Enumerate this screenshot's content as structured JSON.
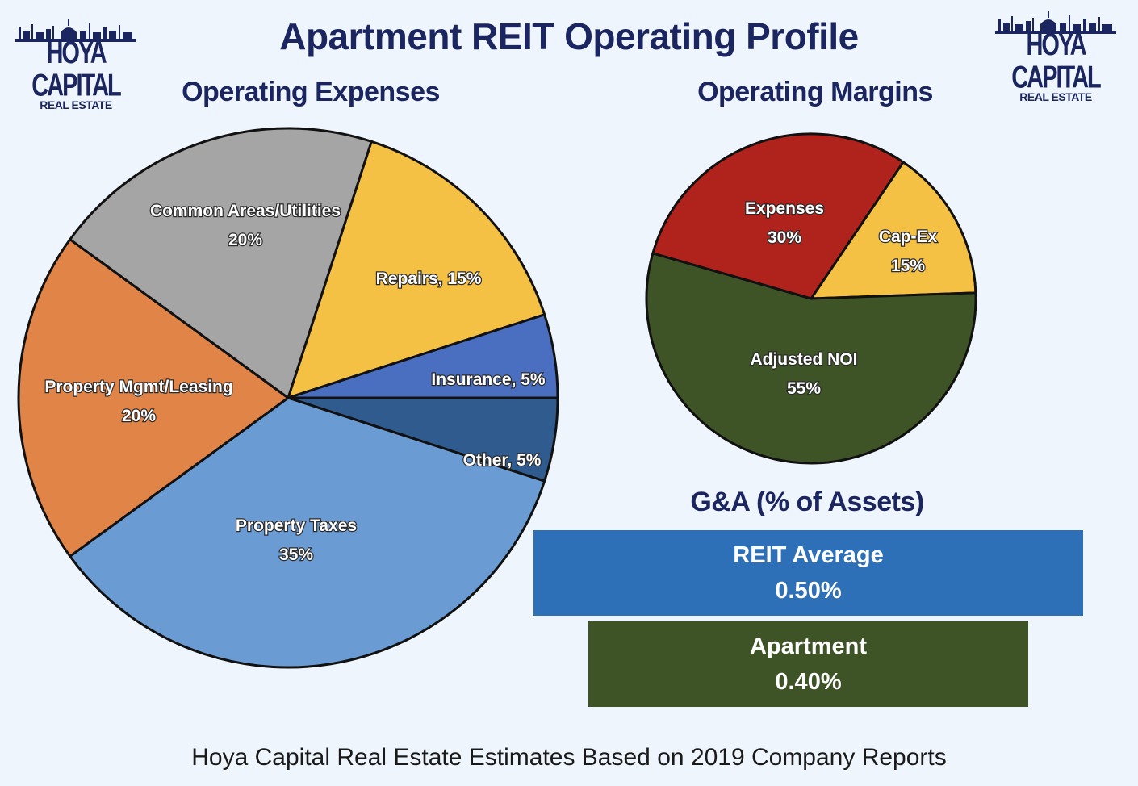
{
  "header": {
    "title": "Apartment REIT Operating Profile"
  },
  "logo": {
    "line1": "HOYA CAPITAL",
    "line2": "REAL ESTATE"
  },
  "colors": {
    "title_navy": "#1b2560",
    "reit_bar": "#2e70b8",
    "apartment_bar": "#3e5426"
  },
  "footer": {
    "text": "Hoya Capital Real Estate Estimates Based on 2019 Company Reports"
  },
  "chart_data": [
    {
      "type": "pie",
      "title": "Operating Expenses",
      "slices": [
        {
          "label": "Repairs",
          "value": 15,
          "display": "Repairs, 15%",
          "color": "#f5c144"
        },
        {
          "label": "Insurance",
          "value": 5,
          "display": "Insurance, 5%",
          "color": "#4a6fc0"
        },
        {
          "label": "Other",
          "value": 5,
          "display": "Other, 5%",
          "color": "#2f5b8e"
        },
        {
          "label": "Property Taxes",
          "value": 35,
          "display_lines": [
            "Property Taxes",
            "35%"
          ],
          "color": "#6a9bd2"
        },
        {
          "label": "Property Mgmt/Leasing",
          "value": 20,
          "display_lines": [
            "Property Mgmt/Leasing",
            "20%"
          ],
          "color": "#e08447"
        },
        {
          "label": "Common Areas/Utilities",
          "value": 20,
          "display_lines": [
            "Common Areas/Utilities",
            "20%"
          ],
          "color": "#a5a5a5"
        }
      ]
    },
    {
      "type": "pie",
      "title": "Operating Margins",
      "slices": [
        {
          "label": "Cap-Ex",
          "value": 15,
          "display_lines": [
            "Cap-Ex",
            "15%"
          ],
          "color": "#f5c144"
        },
        {
          "label": "Adjusted NOI",
          "value": 55,
          "display_lines": [
            "Adjusted NOI",
            "55%"
          ],
          "color": "#3e5426"
        },
        {
          "label": "Expenses",
          "value": 30,
          "display_lines": [
            "Expenses",
            "30%"
          ],
          "color": "#b0231c"
        }
      ]
    },
    {
      "type": "bar",
      "title": "G&A (% of Assets)",
      "categories": [
        "REIT Average",
        "Apartment"
      ],
      "values": [
        0.5,
        0.4
      ],
      "value_labels": [
        "0.50%",
        "0.40%"
      ]
    }
  ]
}
